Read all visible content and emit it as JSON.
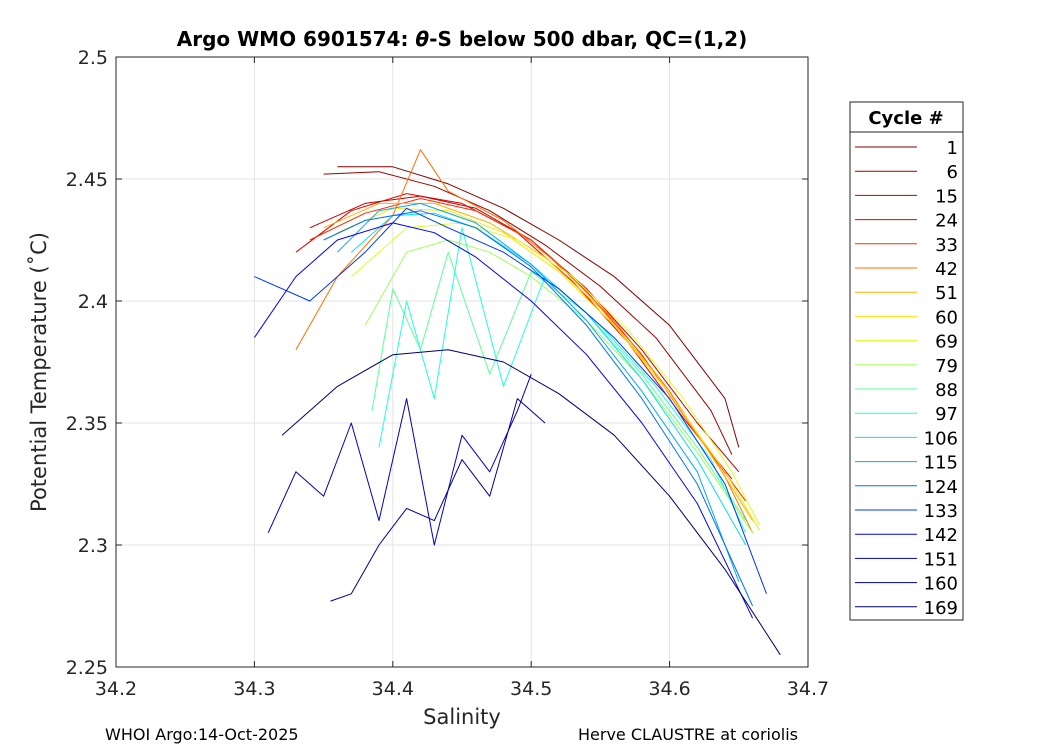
{
  "chart_data": {
    "type": "line",
    "title_prefix": "Argo WMO 6901574: ",
    "title_theta": "θ",
    "title_suffix": "-S below 500 dbar,  QC=(1,2)",
    "xlabel": "Salinity",
    "ylabel": "Potential Temperature (˚C)",
    "xlim": [
      34.2,
      34.7
    ],
    "ylim": [
      2.25,
      2.5
    ],
    "xticks": [
      34.2,
      34.3,
      34.4,
      34.5,
      34.6,
      34.7
    ],
    "xtick_labels": [
      "34.2",
      "34.3",
      "34.4",
      "34.5",
      "34.6",
      "34.7"
    ],
    "yticks": [
      2.25,
      2.3,
      2.35,
      2.4,
      2.45,
      2.5
    ],
    "ytick_labels": [
      "2.25",
      "2.3",
      "2.35",
      "2.4",
      "2.45",
      "2.5"
    ],
    "grid": true,
    "colormap": "jet",
    "legend": {
      "title": "Cycle #",
      "position": "right",
      "entries": [
        {
          "label": "1",
          "color": "#800000"
        },
        {
          "label": "6",
          "color": "#990000"
        },
        {
          "label": "15",
          "color": "#c40000"
        },
        {
          "label": "24",
          "color": "#e60000"
        },
        {
          "label": "33",
          "color": "#ff2a00"
        },
        {
          "label": "42",
          "color": "#ff7000"
        },
        {
          "label": "51",
          "color": "#ffb000"
        },
        {
          "label": "60",
          "color": "#ffe400"
        },
        {
          "label": "69",
          "color": "#dcff20"
        },
        {
          "label": "79",
          "color": "#a0ff5a"
        },
        {
          "label": "88",
          "color": "#5cff9a"
        },
        {
          "label": "97",
          "color": "#20ffd8"
        },
        {
          "label": "106",
          "color": "#00e0ff"
        },
        {
          "label": "115",
          "color": "#00a8ff"
        },
        {
          "label": "124",
          "color": "#0070ff"
        },
        {
          "label": "133",
          "color": "#0034ff"
        },
        {
          "label": "142",
          "color": "#0000f0"
        },
        {
          "label": "151",
          "color": "#0000c0"
        },
        {
          "label": "160",
          "color": "#000094"
        },
        {
          "label": "169",
          "color": "#00006e"
        }
      ]
    },
    "series": [
      {
        "name": "1",
        "color": "#800000",
        "salinity": [
          34.36,
          34.4,
          34.44,
          34.48,
          34.52,
          34.56,
          34.6,
          34.64,
          34.65
        ],
        "theta": [
          2.455,
          2.455,
          2.448,
          2.438,
          2.425,
          2.41,
          2.39,
          2.36,
          2.34
        ]
      },
      {
        "name": "6",
        "color": "#990000",
        "salinity": [
          34.35,
          34.39,
          34.43,
          34.47,
          34.51,
          34.55,
          34.59,
          34.63,
          34.645
        ],
        "theta": [
          2.452,
          2.453,
          2.447,
          2.437,
          2.423,
          2.406,
          2.385,
          2.355,
          2.337
        ]
      },
      {
        "name": "15",
        "color": "#c40000",
        "salinity": [
          34.34,
          34.38,
          34.42,
          34.46,
          34.5,
          34.54,
          34.58,
          34.62,
          34.65
        ],
        "theta": [
          2.43,
          2.44,
          2.443,
          2.438,
          2.425,
          2.405,
          2.38,
          2.35,
          2.33
        ]
      },
      {
        "name": "24",
        "color": "#e60000",
        "salinity": [
          34.33,
          34.37,
          34.41,
          34.45,
          34.49,
          34.53,
          34.57,
          34.61,
          34.645
        ],
        "theta": [
          2.42,
          2.437,
          2.444,
          2.44,
          2.428,
          2.408,
          2.383,
          2.352,
          2.327
        ]
      },
      {
        "name": "33",
        "color": "#ff2a00",
        "salinity": [
          34.34,
          34.38,
          34.42,
          34.46,
          34.5,
          34.54,
          34.58,
          34.62,
          34.655
        ],
        "theta": [
          2.425,
          2.436,
          2.442,
          2.437,
          2.425,
          2.404,
          2.378,
          2.345,
          2.318
        ]
      },
      {
        "name": "42",
        "color": "#ff7000",
        "salinity": [
          34.33,
          34.36,
          34.4,
          34.42,
          34.44,
          34.48,
          34.52,
          34.56,
          34.6,
          34.64,
          34.66
        ],
        "theta": [
          2.38,
          2.41,
          2.435,
          2.462,
          2.445,
          2.433,
          2.415,
          2.392,
          2.363,
          2.328,
          2.305
        ]
      },
      {
        "name": "51",
        "color": "#ffb000",
        "salinity": [
          34.35,
          34.39,
          34.43,
          34.47,
          34.51,
          34.55,
          34.59,
          34.63,
          34.66
        ],
        "theta": [
          2.43,
          2.44,
          2.44,
          2.432,
          2.418,
          2.397,
          2.37,
          2.337,
          2.31
        ]
      },
      {
        "name": "60",
        "color": "#ffe400",
        "salinity": [
          34.36,
          34.4,
          34.44,
          34.48,
          34.52,
          34.56,
          34.6,
          34.64,
          34.665
        ],
        "theta": [
          2.428,
          2.438,
          2.437,
          2.428,
          2.412,
          2.39,
          2.362,
          2.33,
          2.306
        ]
      },
      {
        "name": "69",
        "color": "#dcff20",
        "salinity": [
          34.37,
          34.41,
          34.45,
          34.49,
          34.53,
          34.57,
          34.61,
          34.645,
          34.665
        ],
        "theta": [
          2.41,
          2.43,
          2.432,
          2.425,
          2.41,
          2.388,
          2.36,
          2.33,
          2.308
        ]
      },
      {
        "name": "79",
        "color": "#a0ff5a",
        "salinity": [
          34.38,
          34.41,
          34.44,
          34.47,
          34.5,
          34.54,
          34.58,
          34.62,
          34.66
        ],
        "theta": [
          2.39,
          2.42,
          2.425,
          2.42,
          2.41,
          2.392,
          2.368,
          2.338,
          2.305
        ]
      },
      {
        "name": "88",
        "color": "#5cff9a",
        "salinity": [
          34.385,
          34.4,
          34.42,
          34.44,
          34.47,
          34.5,
          34.54,
          34.58,
          34.62,
          34.655
        ],
        "theta": [
          2.355,
          2.405,
          2.38,
          2.42,
          2.37,
          2.412,
          2.395,
          2.37,
          2.34,
          2.31
        ]
      },
      {
        "name": "97",
        "color": "#20ffd8",
        "salinity": [
          34.39,
          34.41,
          34.43,
          34.45,
          34.48,
          34.51,
          34.55,
          34.59,
          34.63,
          34.655
        ],
        "theta": [
          2.34,
          2.4,
          2.36,
          2.43,
          2.365,
          2.41,
          2.39,
          2.365,
          2.335,
          2.305
        ]
      },
      {
        "name": "106",
        "color": "#00e0ff",
        "salinity": [
          34.37,
          34.4,
          34.43,
          34.46,
          34.5,
          34.54,
          34.58,
          34.62,
          34.655
        ],
        "theta": [
          2.42,
          2.435,
          2.436,
          2.43,
          2.415,
          2.395,
          2.368,
          2.335,
          2.3
        ]
      },
      {
        "name": "115",
        "color": "#00a8ff",
        "salinity": [
          34.36,
          34.39,
          34.42,
          34.46,
          34.5,
          34.54,
          34.58,
          34.62,
          34.65
        ],
        "theta": [
          2.42,
          2.437,
          2.44,
          2.432,
          2.415,
          2.392,
          2.363,
          2.33,
          2.285
        ]
      },
      {
        "name": "124",
        "color": "#0070ff",
        "salinity": [
          34.35,
          34.38,
          34.42,
          34.46,
          34.5,
          34.54,
          34.58,
          34.62,
          34.66
        ],
        "theta": [
          2.425,
          2.433,
          2.437,
          2.43,
          2.414,
          2.39,
          2.36,
          2.325,
          2.275
        ]
      },
      {
        "name": "133",
        "color": "#0034ff",
        "salinity": [
          34.3,
          34.34,
          34.38,
          34.41,
          34.44,
          34.48,
          34.52,
          34.56,
          34.6,
          34.64,
          34.67
        ],
        "theta": [
          2.41,
          2.4,
          2.42,
          2.438,
          2.43,
          2.42,
          2.405,
          2.385,
          2.36,
          2.325,
          2.28
        ]
      },
      {
        "name": "142",
        "color": "#0000f0",
        "salinity": [
          34.3,
          34.33,
          34.36,
          34.4,
          34.43,
          34.46,
          34.5,
          34.54,
          34.58,
          34.62,
          34.66
        ],
        "theta": [
          2.385,
          2.41,
          2.425,
          2.432,
          2.428,
          2.418,
          2.4,
          2.378,
          2.35,
          2.317,
          2.27
        ]
      },
      {
        "name": "151",
        "color": "#0000c0",
        "salinity": [
          34.31,
          34.33,
          34.35,
          34.37,
          34.39,
          34.41,
          34.43,
          34.45,
          34.47,
          34.49,
          34.5
        ],
        "theta": [
          2.305,
          2.33,
          2.32,
          2.35,
          2.31,
          2.36,
          2.3,
          2.345,
          2.33,
          2.355,
          2.37
        ]
      },
      {
        "name": "160",
        "color": "#000094",
        "salinity": [
          34.355,
          34.37,
          34.39,
          34.41,
          34.43,
          34.45,
          34.47,
          34.49,
          34.51
        ],
        "theta": [
          2.277,
          2.28,
          2.3,
          2.315,
          2.31,
          2.335,
          2.32,
          2.36,
          2.35
        ]
      },
      {
        "name": "169",
        "color": "#00006e",
        "salinity": [
          34.32,
          34.36,
          34.4,
          34.44,
          34.48,
          34.52,
          34.56,
          34.6,
          34.64,
          34.68
        ],
        "theta": [
          2.345,
          2.365,
          2.378,
          2.38,
          2.375,
          2.362,
          2.345,
          2.32,
          2.29,
          2.255
        ]
      }
    ]
  },
  "footer": {
    "left": "WHOI Argo:14-Oct-2025",
    "right": "Herve CLAUSTRE at coriolis"
  }
}
